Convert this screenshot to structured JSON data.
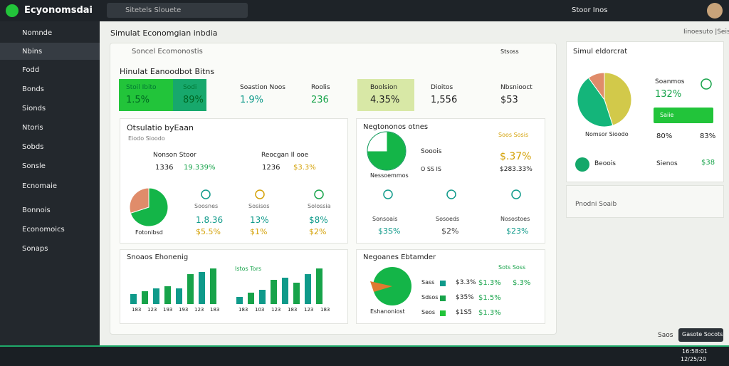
{
  "app": {
    "name": "Ecyonomsdai",
    "search": "Sitetels Slouete",
    "user": "Stoor Inos"
  },
  "sidebar": [
    "Nomnde",
    "Nbins",
    "Fodd",
    "Bonds",
    "Sionds",
    "Ntoris",
    "Sobds",
    "Sonsle",
    "Ecnomaie",
    "Bonnois",
    "Economoics",
    "Sonaps"
  ],
  "page": {
    "title": "Simulat Economgian inbdia",
    "action": "Iinoesuto |Seis"
  },
  "panel": {
    "title": "Soncel Ecomonostis",
    "button": "Stsoss",
    "subtitle": "Hinulat Eanoodbot Bitns"
  },
  "kpis": [
    {
      "label": "Stoil Ibito",
      "value": "1.5%"
    },
    {
      "label": "Sodi",
      "value": "89%"
    },
    {
      "label": "Soastion Noos",
      "value": "1.9%"
    },
    {
      "label": "Roolis",
      "value": "236"
    },
    {
      "label": "Boolsion",
      "value": "4.35%"
    },
    {
      "label": "Dioitos",
      "value": "1,556"
    },
    {
      "label": "Nbsniooct",
      "value": "$53"
    }
  ],
  "card1": {
    "title": "Otsulatio byEaan",
    "note": "Eiodo Sioodo",
    "items": [
      {
        "label": "Nonson Stoor",
        "a": "1336",
        "b": "19.339%"
      },
      {
        "label": "Reocgan Il ooe",
        "a": "1236",
        "b": "$3.3%"
      }
    ],
    "pie": [
      70,
      30
    ],
    "pie_label": "Fotonibsd",
    "stats": [
      {
        "label": "Soosnes",
        "a": "1.8.36",
        "b": "$5.5%"
      },
      {
        "label": "Sosisos",
        "a": "13%",
        "b": "$1%"
      },
      {
        "label": "Solossia",
        "a": "$8%",
        "b": "$2%"
      }
    ]
  },
  "card2": {
    "title": "Negtononos otnes",
    "note": "Soos Sosis",
    "pie": [
      75,
      25
    ],
    "pie_label": "Nessoemmos",
    "head": "Sooois",
    "sub": "O SS IS",
    "value": "$.37%",
    "value2": "$283.33%",
    "stats": [
      {
        "label": "Sonsoais",
        "b": "$3S%"
      },
      {
        "label": "Sosoeds",
        "b": "$2%"
      },
      {
        "label": "Nosostoes",
        "b": "$23%"
      }
    ]
  },
  "card3": {
    "title": "Snoaos Ehonenig",
    "legend": "Istos Tors",
    "bars1": [
      14,
      18,
      22,
      25,
      22,
      42,
      45,
      50
    ],
    "bars2": [
      10,
      16,
      20,
      34,
      37,
      30,
      42,
      50
    ],
    "labels1": [
      "183",
      "123",
      "193",
      "193",
      "123",
      "183"
    ],
    "labels2": [
      "183",
      "103",
      "123",
      "183",
      "123",
      "183"
    ]
  },
  "card4": {
    "title": "Negoanes Ebtamder",
    "legend": "Sots Soss",
    "pie_label": "Eshanoniost",
    "rows": [
      {
        "label": "Sass",
        "a": "$3.3%",
        "b": "$1.3%",
        "c": "$.3%"
      },
      {
        "label": "Sdsos",
        "a": "$35%",
        "b": "$1.5%"
      },
      {
        "label": "Seos",
        "a": "$1S5",
        "b": "$1.3%"
      }
    ]
  },
  "right": {
    "title": "Simul eldorcrat",
    "pie": [
      45,
      45,
      10
    ],
    "pie_label": "Nomsor Sioodo",
    "head": "Soanmos",
    "value": "132%",
    "button": "Saiie",
    "a": "80%",
    "b": "83%",
    "item": "Beoois",
    "c": "Sienos",
    "d": "$38",
    "panel2": "Pnodni Soaib"
  },
  "footer": {
    "link": "Saos",
    "button": "Gasote Socots"
  },
  "taskbar": {
    "time": "16:58:01",
    "date": "12/25/20"
  }
}
